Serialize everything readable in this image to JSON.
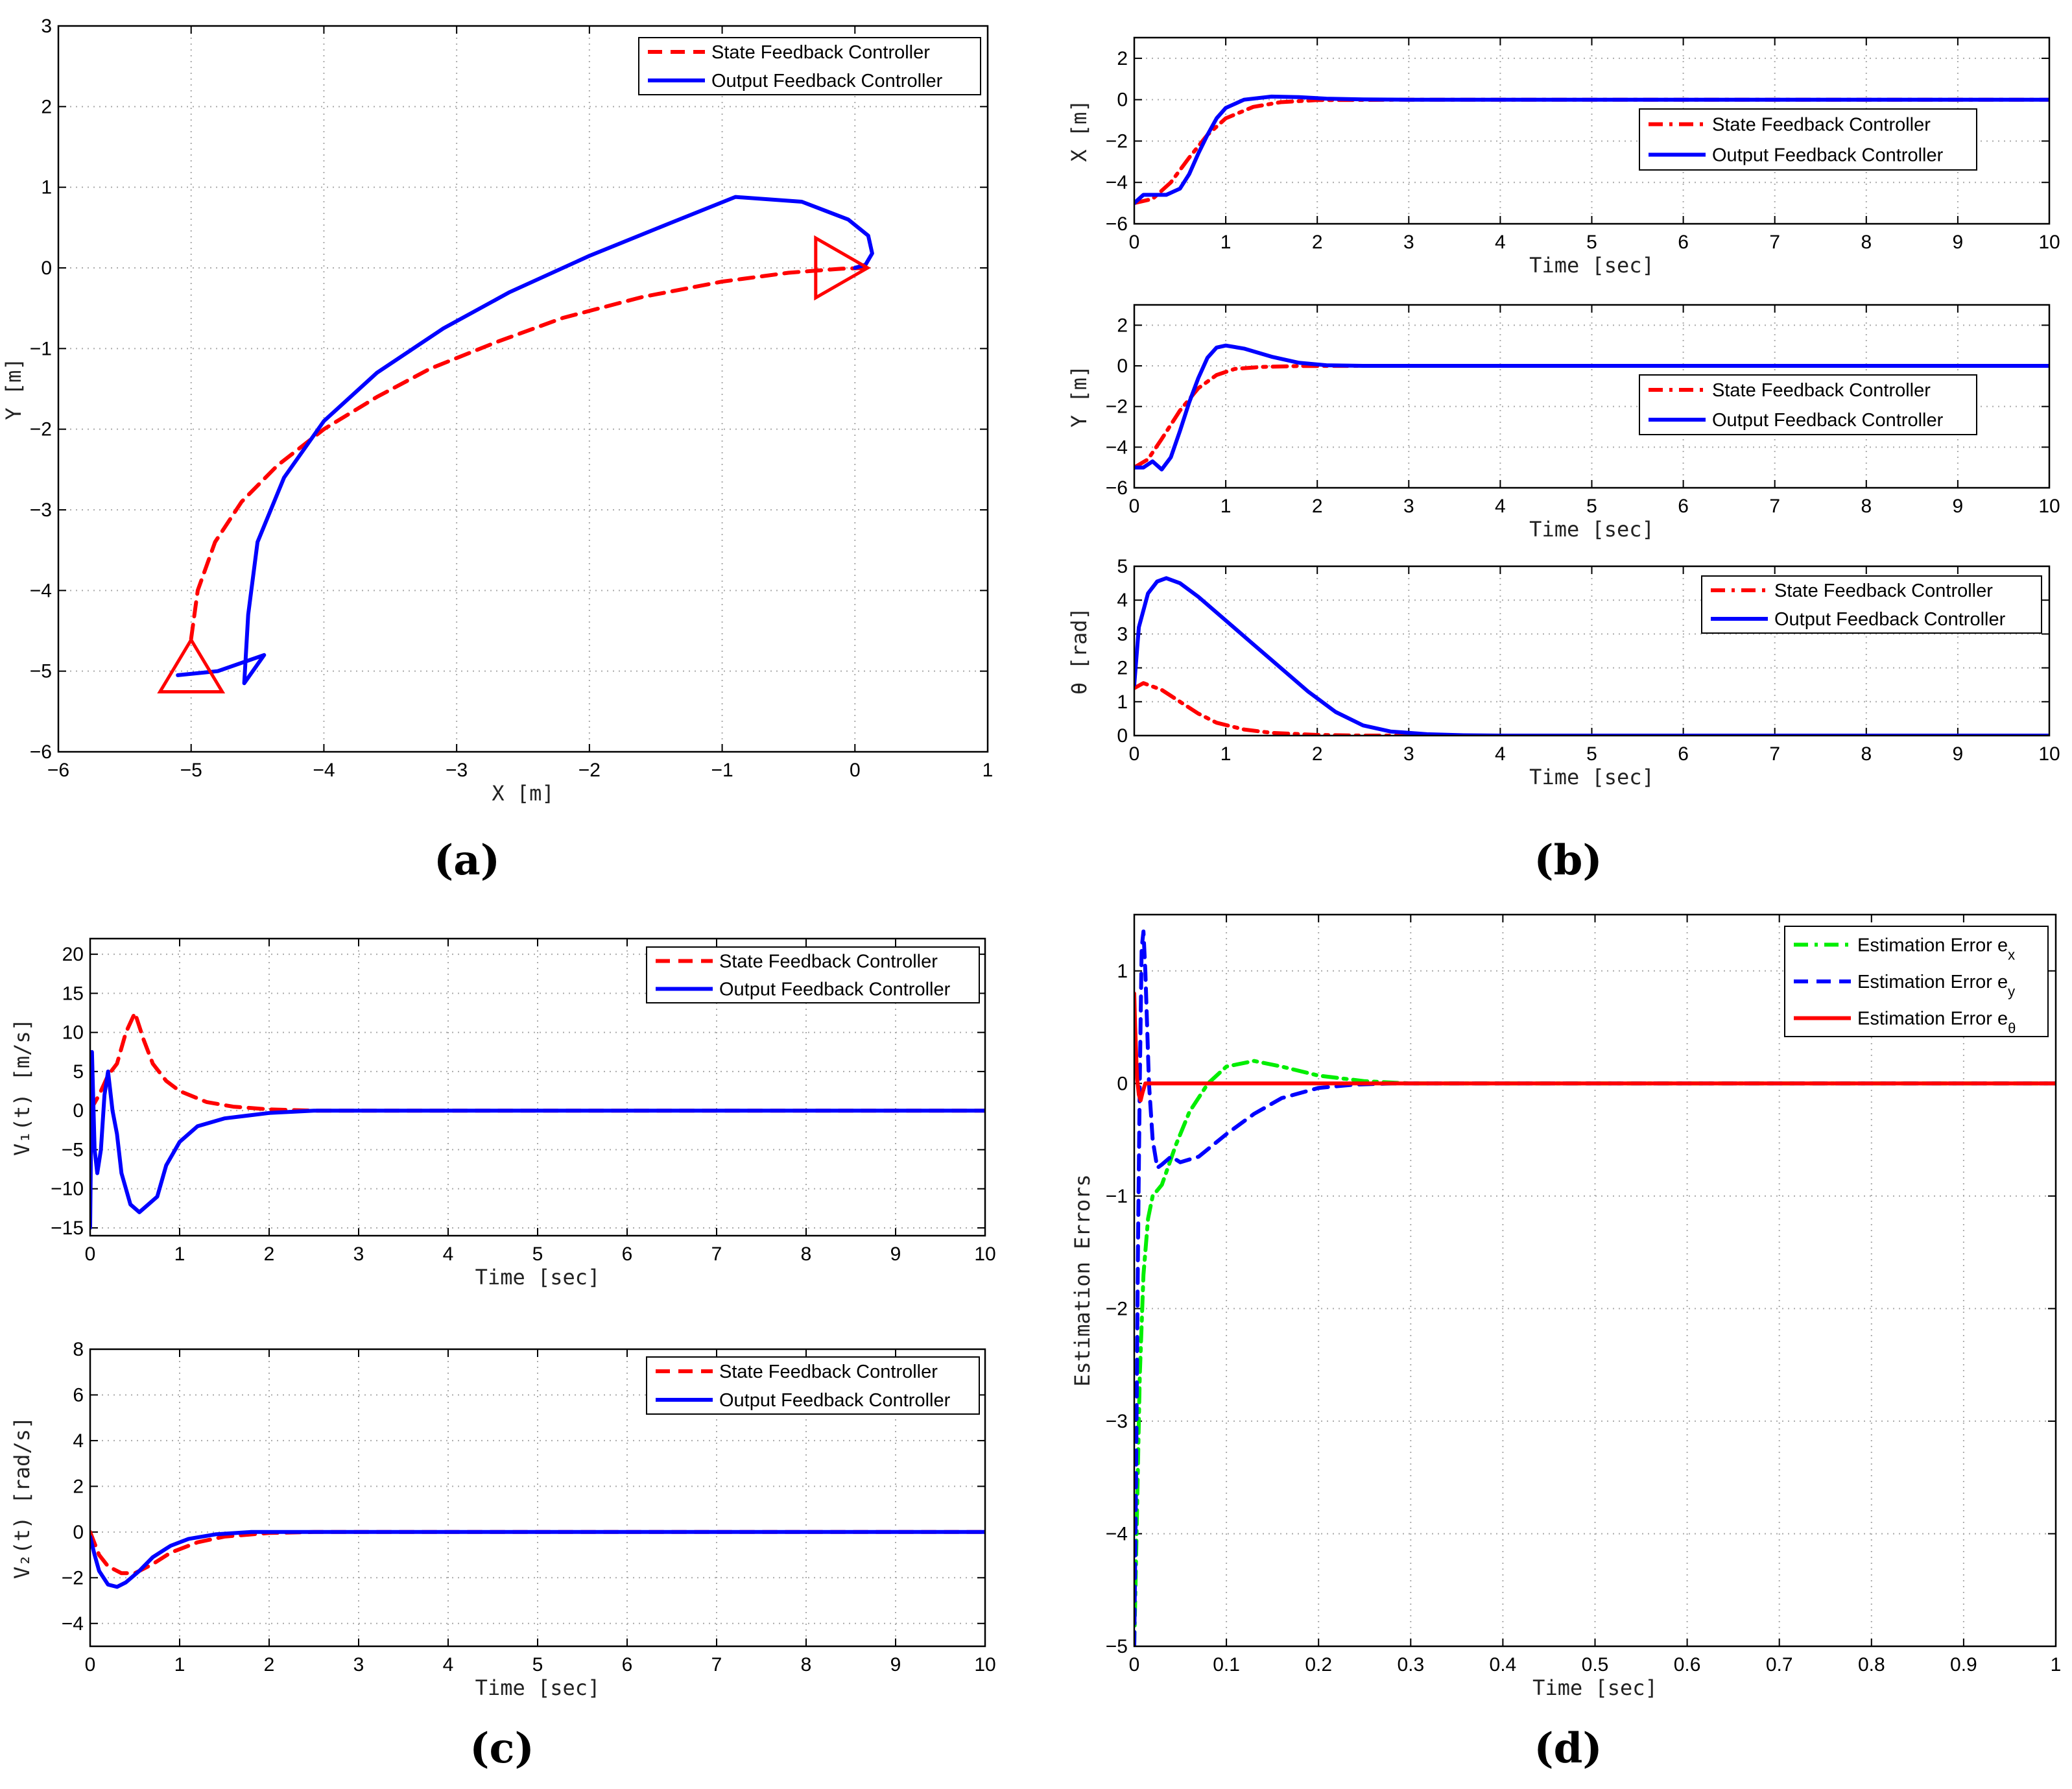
{
  "colors": {
    "state": "#ff0000",
    "output": "#0000ff",
    "ex": "#00ee00",
    "ey": "#0000ff",
    "eth": "#ff0000"
  },
  "panel_labels": [
    "(a)",
    "(b)",
    "(c)",
    "(d)"
  ],
  "chart_data": [
    {
      "id": "traj",
      "panel": "(a)",
      "type": "line",
      "xlabel": "X [m]",
      "ylabel": "Y [m]",
      "xlim": [
        -6,
        1
      ],
      "ylim": [
        -6,
        3
      ],
      "xticks": [
        -6,
        -5,
        -4,
        -3,
        -2,
        -1,
        0,
        1
      ],
      "yticks": [
        -6,
        -5,
        -4,
        -3,
        -2,
        -1,
        0,
        1,
        2,
        3
      ],
      "legend": [
        "State Feedback Controller",
        "Output Feedback Controller"
      ],
      "series": [
        {
          "name": "State Feedback Controller",
          "style": "dash",
          "color": "#ff0000",
          "x": [
            -5.0,
            -4.95,
            -4.82,
            -4.62,
            -4.35,
            -4.0,
            -3.6,
            -3.2,
            -2.7,
            -2.2,
            -1.6,
            -1.0,
            -0.5,
            -0.1,
            0.1
          ],
          "y": [
            -4.6,
            -4.0,
            -3.4,
            -2.9,
            -2.45,
            -2.0,
            -1.6,
            -1.25,
            -0.92,
            -0.62,
            -0.36,
            -0.17,
            -0.06,
            -0.01,
            0.0
          ]
        },
        {
          "name": "Output Feedback Controller",
          "style": "solid",
          "color": "#0000ff",
          "x": [
            -5.1,
            -4.8,
            -4.45,
            -4.6,
            -4.57,
            -4.5,
            -4.3,
            -4.0,
            -3.6,
            -3.1,
            -2.6,
            -2.0,
            -1.4,
            -0.9,
            -0.4,
            -0.05,
            0.1,
            0.13,
            0.08,
            0.0
          ],
          "y": [
            -5.05,
            -5.0,
            -4.8,
            -5.15,
            -4.3,
            -3.4,
            -2.6,
            -1.9,
            -1.3,
            -0.75,
            -0.3,
            0.15,
            0.55,
            0.88,
            0.82,
            0.6,
            0.4,
            0.18,
            0.04,
            0.0
          ]
        }
      ],
      "markers": [
        {
          "shape": "triangle-up",
          "x": -5.0,
          "y": -4.95
        },
        {
          "shape": "triangle-right",
          "x": -0.1,
          "y": 0.0
        }
      ]
    },
    {
      "id": "bx",
      "panel": "(b)",
      "type": "line",
      "xlabel": "Time [sec]",
      "ylabel": "X [m]",
      "xlim": [
        0,
        10
      ],
      "ylim": [
        -6,
        3
      ],
      "xticks": [
        0,
        1,
        2,
        3,
        4,
        5,
        6,
        7,
        8,
        9,
        10
      ],
      "yticks": [
        -6,
        -4,
        -2,
        0,
        2
      ],
      "legend": [
        "State Feedback Controller",
        "Output Feedback Controller"
      ],
      "series": [
        {
          "name": "State Feedback Controller",
          "style": "dashdot",
          "color": "#ff0000",
          "x": [
            0,
            0.2,
            0.4,
            0.6,
            0.8,
            1.0,
            1.3,
            1.6,
            2.0,
            3,
            10
          ],
          "y": [
            -5.0,
            -4.8,
            -4.0,
            -2.8,
            -1.7,
            -0.9,
            -0.35,
            -0.12,
            -0.02,
            0,
            0
          ]
        },
        {
          "name": "Output Feedback Controller",
          "style": "solid",
          "color": "#0000ff",
          "x": [
            0,
            0.1,
            0.2,
            0.35,
            0.5,
            0.6,
            0.7,
            0.8,
            0.9,
            1.0,
            1.2,
            1.5,
            1.8,
            2.1,
            2.5,
            3,
            10
          ],
          "y": [
            -5.0,
            -4.6,
            -4.6,
            -4.6,
            -4.3,
            -3.6,
            -2.6,
            -1.7,
            -0.9,
            -0.4,
            0.0,
            0.15,
            0.12,
            0.05,
            0.01,
            0,
            0
          ]
        }
      ]
    },
    {
      "id": "by",
      "panel": "(b)",
      "type": "line",
      "xlabel": "Time [sec]",
      "ylabel": "Y [m]",
      "xlim": [
        0,
        10
      ],
      "ylim": [
        -6,
        3
      ],
      "xticks": [
        0,
        1,
        2,
        3,
        4,
        5,
        6,
        7,
        8,
        9,
        10
      ],
      "yticks": [
        -6,
        -4,
        -2,
        0,
        2
      ],
      "legend": [
        "State Feedback Controller",
        "Output Feedback Controller"
      ],
      "series": [
        {
          "name": "State Feedback Controller",
          "style": "dashdot",
          "color": "#ff0000",
          "x": [
            0,
            0.15,
            0.3,
            0.5,
            0.7,
            0.9,
            1.1,
            1.4,
            1.8,
            2.5,
            10
          ],
          "y": [
            -5.0,
            -4.6,
            -3.6,
            -2.2,
            -1.1,
            -0.45,
            -0.15,
            -0.05,
            -0.01,
            0,
            0
          ]
        },
        {
          "name": "Output Feedback Controller",
          "style": "solid",
          "color": "#0000ff",
          "x": [
            0,
            0.1,
            0.2,
            0.3,
            0.4,
            0.5,
            0.6,
            0.7,
            0.8,
            0.9,
            1.0,
            1.2,
            1.5,
            1.8,
            2.1,
            2.5,
            10
          ],
          "y": [
            -5.0,
            -5.0,
            -4.7,
            -5.1,
            -4.5,
            -3.2,
            -1.8,
            -0.6,
            0.4,
            0.9,
            1.0,
            0.85,
            0.45,
            0.15,
            0.03,
            0,
            0
          ]
        }
      ]
    },
    {
      "id": "bt",
      "panel": "(b)",
      "type": "line",
      "xlabel": "Time [sec]",
      "ylabel": "θ [rad]",
      "xlim": [
        0,
        10
      ],
      "ylim": [
        0,
        5
      ],
      "xticks": [
        0,
        1,
        2,
        3,
        4,
        5,
        6,
        7,
        8,
        9,
        10
      ],
      "yticks": [
        0,
        1,
        2,
        3,
        4,
        5
      ],
      "legend": [
        "State Feedback Controller",
        "Output Feedback Controller"
      ],
      "series": [
        {
          "name": "State Feedback Controller",
          "style": "dashdot",
          "color": "#ff0000",
          "x": [
            0,
            0.1,
            0.3,
            0.5,
            0.7,
            0.9,
            1.2,
            1.5,
            2.0,
            2.5,
            3.0,
            10
          ],
          "y": [
            1.4,
            1.55,
            1.35,
            1.0,
            0.65,
            0.38,
            0.18,
            0.08,
            0.02,
            0.0,
            0,
            0
          ]
        },
        {
          "name": "Output Feedback Controller",
          "style": "solid",
          "color": "#0000ff",
          "x": [
            0,
            0.05,
            0.15,
            0.25,
            0.35,
            0.5,
            0.7,
            1.0,
            1.3,
            1.6,
            1.9,
            2.2,
            2.5,
            2.8,
            3.2,
            3.6,
            4.0,
            10
          ],
          "y": [
            1.5,
            3.2,
            4.2,
            4.55,
            4.65,
            4.5,
            4.1,
            3.4,
            2.7,
            2.0,
            1.3,
            0.7,
            0.3,
            0.12,
            0.04,
            0.01,
            0,
            0
          ]
        }
      ]
    },
    {
      "id": "cv1",
      "panel": "(c)",
      "type": "line",
      "xlabel": "Time [sec]",
      "ylabel": "V₁(t) [m/s]",
      "xlim": [
        0,
        10
      ],
      "ylim": [
        -16,
        22
      ],
      "xticks": [
        0,
        1,
        2,
        3,
        4,
        5,
        6,
        7,
        8,
        9,
        10
      ],
      "yticks": [
        -15,
        -10,
        -5,
        0,
        5,
        10,
        15,
        20
      ],
      "legend": [
        "State Feedback Controller",
        "Output Feedback Controller"
      ],
      "series": [
        {
          "name": "State Feedback Controller",
          "style": "dash",
          "color": "#ff0000",
          "x": [
            0,
            0.1,
            0.2,
            0.3,
            0.4,
            0.5,
            0.6,
            0.7,
            0.85,
            1.0,
            1.3,
            1.6,
            2.0,
            2.5,
            3,
            10
          ],
          "y": [
            0,
            2,
            4.5,
            6,
            10,
            12.5,
            9,
            6,
            3.8,
            2.5,
            1.1,
            0.5,
            0.15,
            0,
            0,
            0
          ]
        },
        {
          "name": "Output Feedback Controller",
          "style": "solid",
          "color": "#0000ff",
          "x": [
            0,
            0.02,
            0.05,
            0.08,
            0.12,
            0.16,
            0.2,
            0.25,
            0.3,
            0.35,
            0.45,
            0.55,
            0.65,
            0.75,
            0.85,
            1.0,
            1.2,
            1.5,
            2.0,
            2.5,
            3,
            10
          ],
          "y": [
            -15,
            7.5,
            -5,
            -8,
            -5,
            2,
            5,
            0,
            -3,
            -8,
            -12,
            -13,
            -12,
            -11,
            -7,
            -4,
            -2,
            -1,
            -0.3,
            0,
            0,
            0
          ]
        }
      ]
    },
    {
      "id": "cv2",
      "panel": "(c)",
      "type": "line",
      "xlabel": "Time [sec]",
      "ylabel": "V₂(t) [rad/s]",
      "xlim": [
        0,
        10
      ],
      "ylim": [
        -5,
        8
      ],
      "xticks": [
        0,
        1,
        2,
        3,
        4,
        5,
        6,
        7,
        8,
        9,
        10
      ],
      "yticks": [
        -4,
        -2,
        0,
        2,
        4,
        6,
        8
      ],
      "legend": [
        "State Feedback Controller",
        "Output Feedback Controller"
      ],
      "series": [
        {
          "name": "State Feedback Controller",
          "style": "dash",
          "color": "#ff0000",
          "x": [
            0,
            0.1,
            0.2,
            0.35,
            0.5,
            0.7,
            0.9,
            1.2,
            1.5,
            2.0,
            2.5,
            10
          ],
          "y": [
            0,
            -1.0,
            -1.5,
            -1.8,
            -1.8,
            -1.4,
            -0.9,
            -0.45,
            -0.2,
            -0.04,
            0,
            0
          ]
        },
        {
          "name": "Output Feedback Controller",
          "style": "solid",
          "color": "#0000ff",
          "x": [
            0,
            0.05,
            0.1,
            0.2,
            0.3,
            0.4,
            0.55,
            0.7,
            0.9,
            1.1,
            1.4,
            1.8,
            2.2,
            10
          ],
          "y": [
            -0.2,
            -1.0,
            -1.7,
            -2.3,
            -2.4,
            -2.2,
            -1.7,
            -1.1,
            -0.6,
            -0.3,
            -0.1,
            0,
            0,
            0
          ]
        }
      ]
    },
    {
      "id": "d",
      "panel": "(d)",
      "type": "line",
      "xlabel": "Time [sec]",
      "ylabel": "Estimation Errors",
      "xlim": [
        0,
        1
      ],
      "ylim": [
        -5,
        1.5
      ],
      "xticks": [
        0,
        0.1,
        0.2,
        0.3,
        0.4,
        0.5,
        0.6,
        0.7,
        0.8,
        0.9,
        1
      ],
      "yticks": [
        -5,
        -4,
        -3,
        -2,
        -1,
        0,
        1
      ],
      "legend": [
        "Estimation Error e",
        "Estimation Error e",
        "Estimation Error e"
      ],
      "legend_subscripts": [
        "x",
        "y",
        "θ"
      ],
      "series": [
        {
          "name": "Estimation Error ex",
          "style": "dashdot",
          "color": "#00ee00",
          "x": [
            0,
            0.003,
            0.006,
            0.01,
            0.015,
            0.02,
            0.03,
            0.045,
            0.06,
            0.08,
            0.1,
            0.13,
            0.16,
            0.2,
            0.25,
            0.3,
            0.35,
            1
          ],
          "y": [
            -5,
            -3.8,
            -2.6,
            -1.7,
            -1.2,
            -1.0,
            -0.9,
            -0.55,
            -0.25,
            0.0,
            0.15,
            0.2,
            0.15,
            0.07,
            0.02,
            0.0,
            0.0,
            0
          ]
        },
        {
          "name": "Estimation Error ey",
          "style": "dash",
          "color": "#0000ff",
          "x": [
            0,
            0.002,
            0.004,
            0.006,
            0.008,
            0.01,
            0.012,
            0.016,
            0.02,
            0.025,
            0.03,
            0.04,
            0.05,
            0.07,
            0.1,
            0.13,
            0.16,
            0.2,
            0.24,
            0.28,
            0.32,
            1
          ],
          "y": [
            -5,
            -3.5,
            -1.5,
            0.0,
            1.2,
            1.35,
            1.0,
            0.0,
            -0.5,
            -0.75,
            -0.72,
            -0.65,
            -0.7,
            -0.65,
            -0.45,
            -0.27,
            -0.13,
            -0.04,
            -0.01,
            0.0,
            0.0,
            0
          ]
        },
        {
          "name": "Estimation Error eθ",
          "style": "solid",
          "color": "#ff0000",
          "x": [
            0,
            0.001,
            0.003,
            0.005,
            0.007,
            0.009,
            0.012,
            0.016,
            0.02,
            1
          ],
          "y": [
            0.8,
            0.5,
            0.05,
            -0.1,
            -0.15,
            -0.08,
            0.0,
            0.0,
            0.0,
            0.0
          ]
        }
      ]
    }
  ]
}
